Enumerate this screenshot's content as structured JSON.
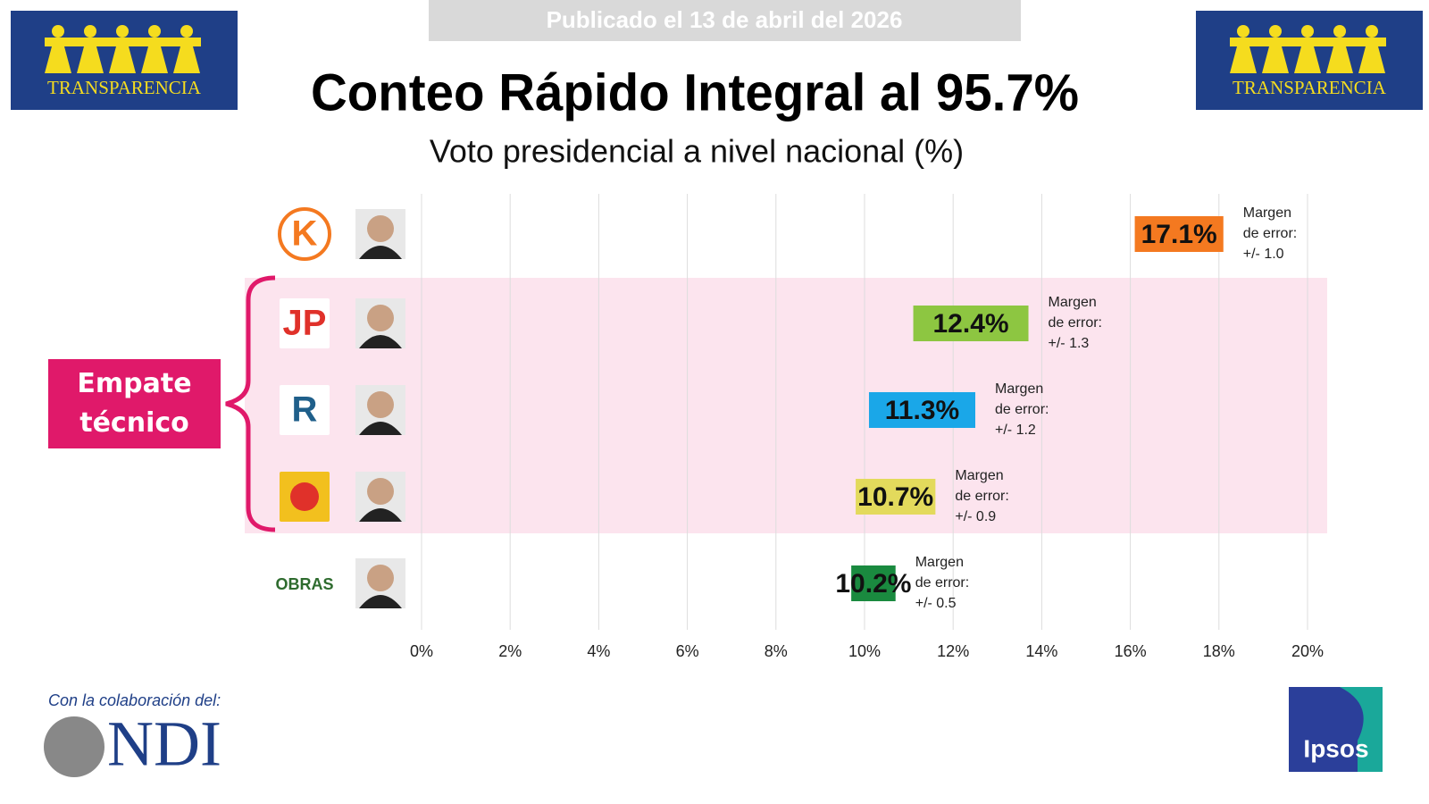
{
  "header": {
    "published": "Publicado el 13 de abril del 2026",
    "logo_text": "TRANSPARENCIA"
  },
  "footer": {
    "collab": "Con la colaboración del:",
    "ndi": "NDI",
    "ipsos": "Ipsos"
  },
  "chart_data": {
    "type": "range_bar",
    "title": "Conteo Rápido Integral al 95.7%",
    "subtitle": "Voto presidencial a nivel nacional (%)",
    "categories": [
      null,
      null,
      null,
      null,
      null
    ],
    "party_logos": [
      "K",
      "JP",
      "R",
      null,
      "OBRAS"
    ],
    "values": [
      17.1,
      12.4,
      11.3,
      10.7,
      10.2
    ],
    "value_labels": [
      "17.1%",
      "12.4%",
      "11.3%",
      "10.7%",
      "10.2%"
    ],
    "errors": [
      1.0,
      1.3,
      1.2,
      0.9,
      0.5
    ],
    "error_labels": [
      "+/- 1.0",
      "+/- 1.3",
      "+/- 1.2",
      "+/- 0.9",
      "+/- 0.5"
    ],
    "error_title": [
      "Margen",
      "de error:"
    ],
    "colors": [
      "#f47920",
      "#8dc641",
      "#1aa7e8",
      "#e3da5c",
      "#1a8a3f"
    ],
    "group_label": "Empate técnico",
    "xlim": [
      0,
      20
    ],
    "xticks": [
      {
        "value": 0,
        "label": "0%"
      },
      {
        "value": 2,
        "label": "2%"
      },
      {
        "value": 4,
        "label": "4%"
      },
      {
        "value": 6,
        "label": "6%"
      },
      {
        "value": 8,
        "label": "8%"
      },
      {
        "value": 10,
        "label": "10%"
      },
      {
        "value": 12,
        "label": "12%"
      },
      {
        "value": 14,
        "label": "14%"
      },
      {
        "value": 16,
        "label": "16%"
      },
      {
        "value": 18,
        "label": "18%"
      },
      {
        "value": 20,
        "label": "20%"
      }
    ],
    "grid": true
  }
}
